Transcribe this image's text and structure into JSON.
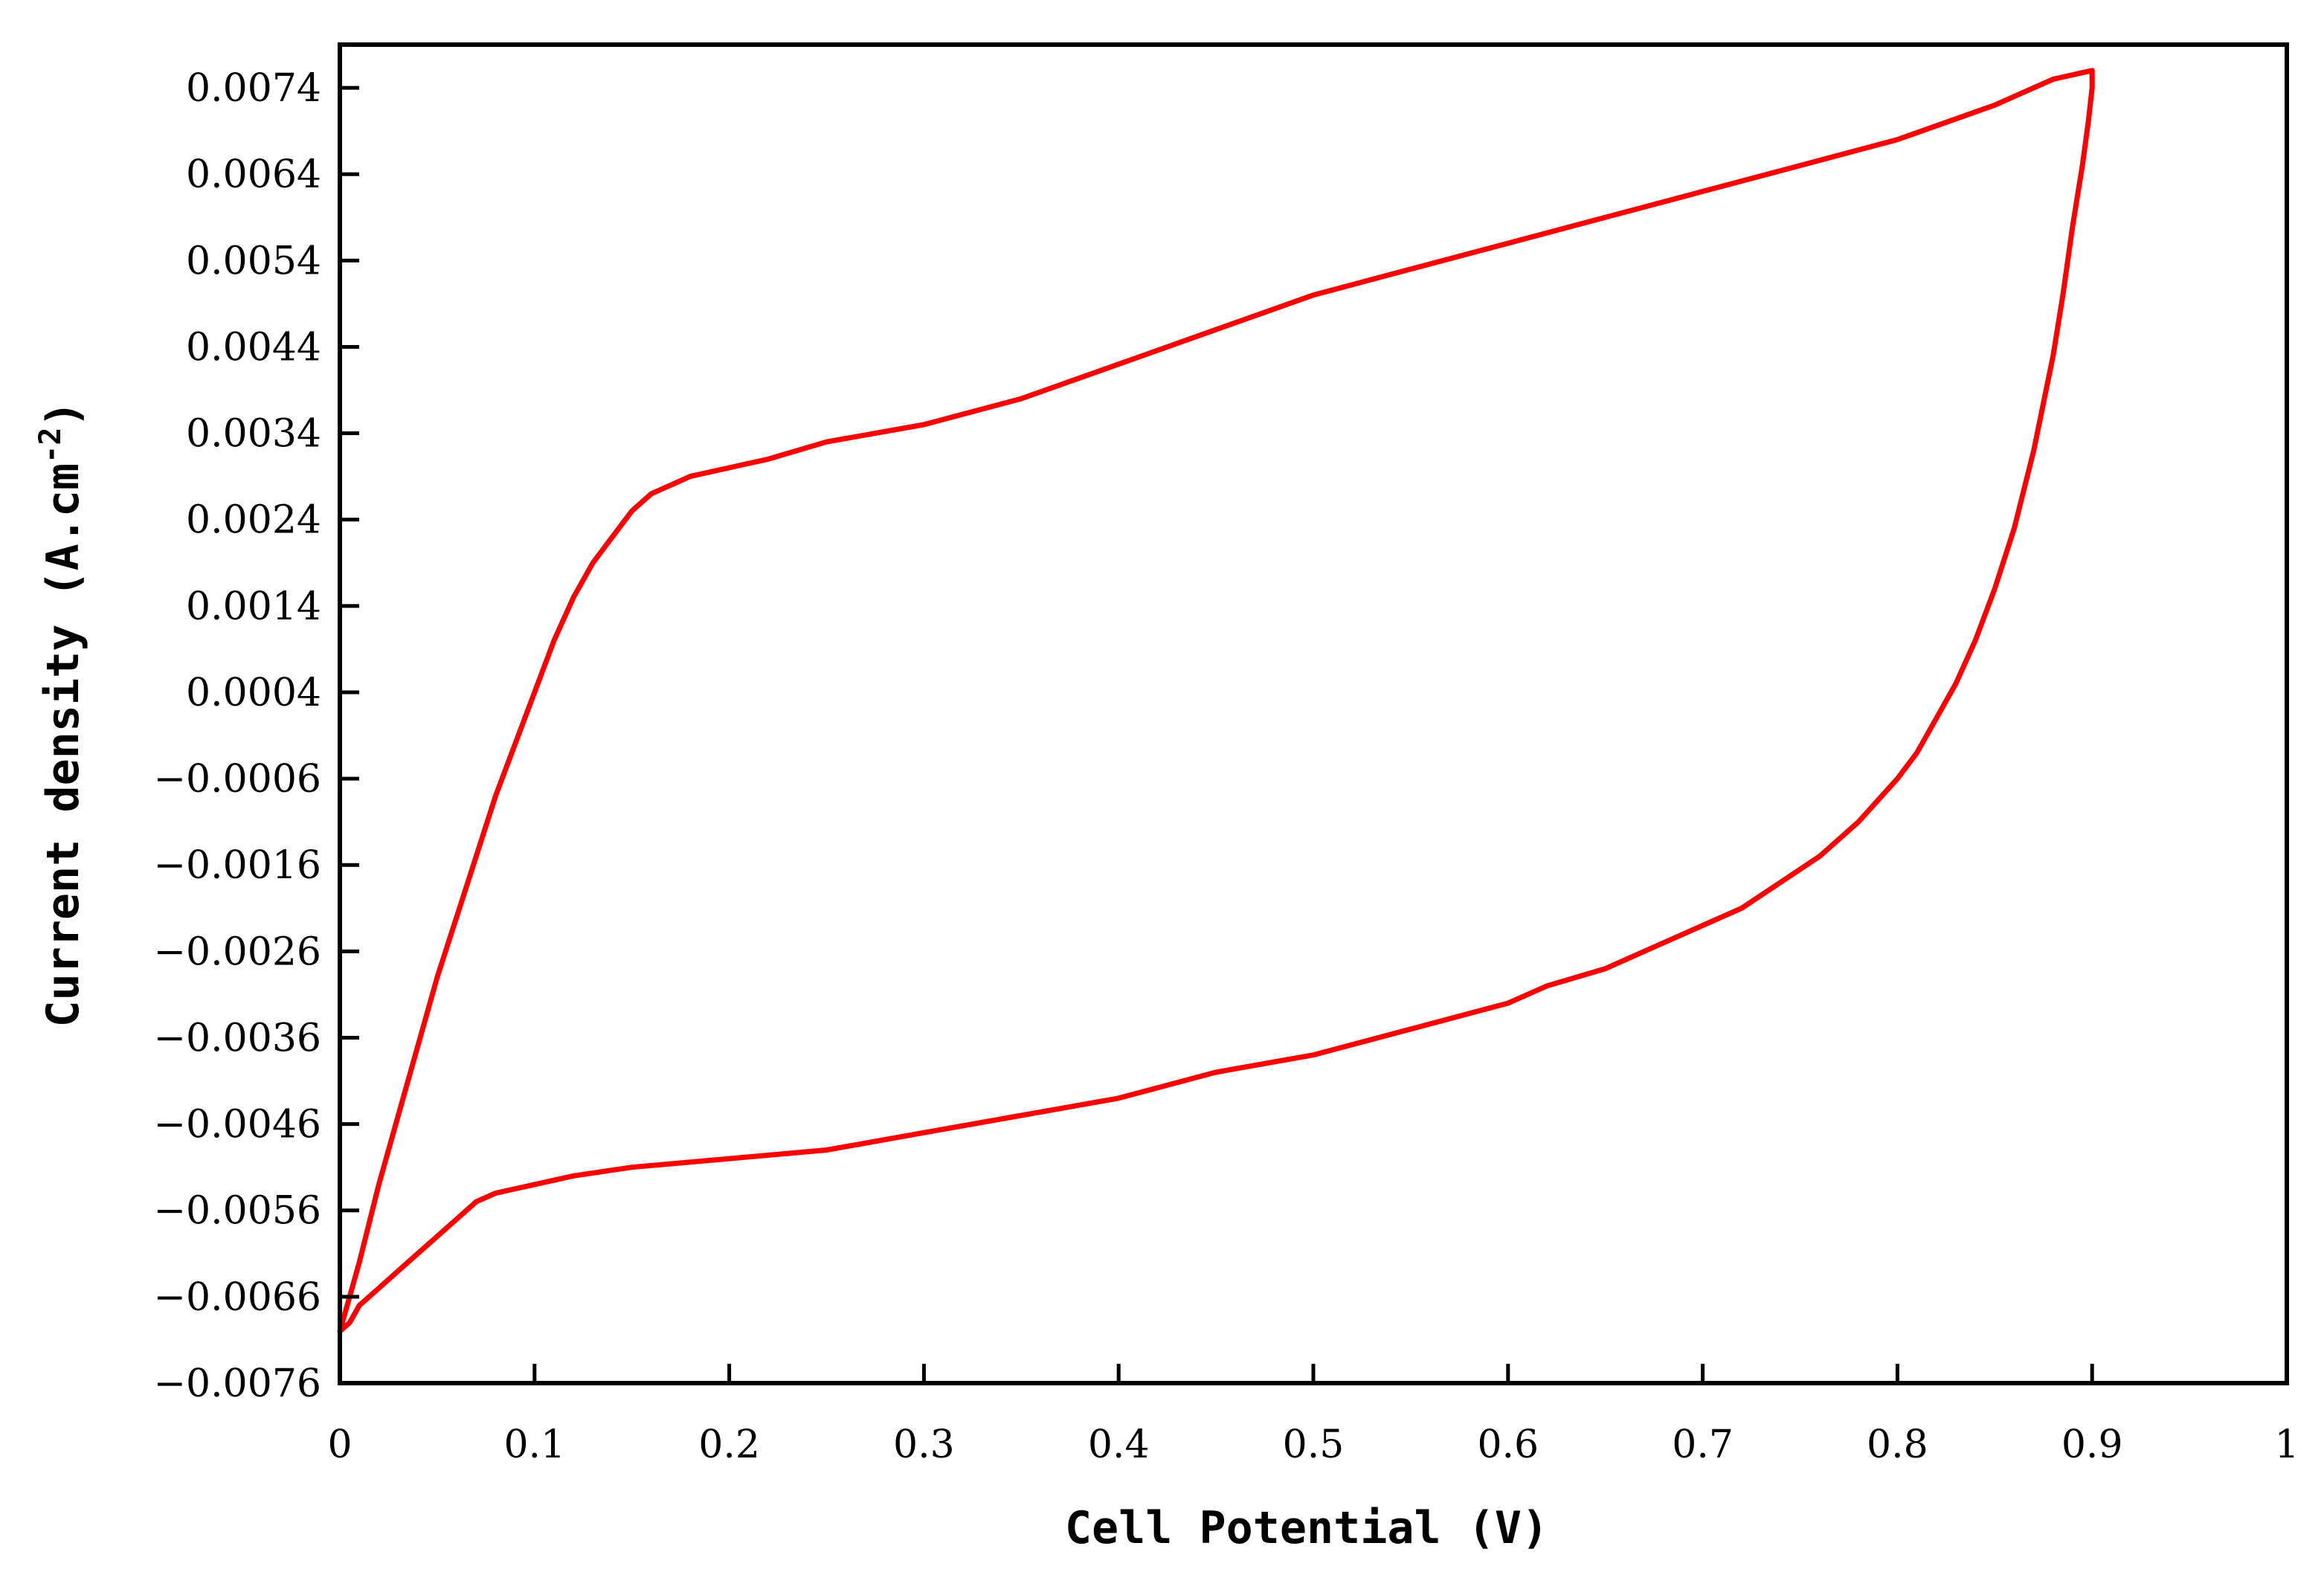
{
  "chart_data": {
    "type": "line",
    "title": "",
    "xlabel": "Cell Potential (V)",
    "ylabel_main": "Current density (A.cm",
    "ylabel_sup": "-2",
    "ylabel_close": ")",
    "xlim": [
      0,
      1
    ],
    "ylim": [
      -0.0076,
      0.0079
    ],
    "x_ticks": [
      0,
      0.1,
      0.2,
      0.3,
      0.4,
      0.5,
      0.6,
      0.7,
      0.8,
      0.9,
      1
    ],
    "x_tick_labels": [
      "0",
      "0.1",
      "0.2",
      "0.3",
      "0.4",
      "0.5",
      "0.6",
      "0.7",
      "0.8",
      "0.9",
      "1"
    ],
    "y_ticks": [
      0.0074,
      0.0064,
      0.0054,
      0.0044,
      0.0034,
      0.0024,
      0.0014,
      0.0004,
      -0.0006,
      -0.0016,
      -0.0026,
      -0.0036,
      -0.0046,
      -0.0056,
      -0.0066,
      -0.0076
    ],
    "y_tick_labels": [
      "0.0074",
      "0.0064",
      "0.0054",
      "0.0044",
      "0.0034",
      "0.0024",
      "0.0014",
      "0.0004",
      "−0.0006",
      "−0.0016",
      "−0.0026",
      "−0.0036",
      "−0.0046",
      "−0.0056",
      "−0.0066",
      "−0.0076"
    ],
    "grid": false,
    "legend": "none",
    "colors": {
      "series": "#ff0000",
      "axes": "#000000",
      "background": "#ffffff"
    },
    "series": [
      {
        "x": [
          0.0,
          0.005,
          0.01,
          0.02,
          0.03,
          0.04,
          0.05,
          0.06,
          0.07,
          0.08,
          0.09,
          0.1,
          0.11,
          0.12,
          0.13,
          0.14,
          0.15,
          0.16,
          0.17,
          0.18,
          0.2,
          0.22,
          0.25,
          0.3,
          0.35,
          0.4,
          0.45,
          0.5,
          0.55,
          0.6,
          0.65,
          0.7,
          0.75,
          0.8,
          0.85,
          0.88,
          0.9,
          0.9,
          0.898,
          0.895,
          0.89,
          0.885,
          0.88,
          0.87,
          0.86,
          0.85,
          0.84,
          0.83,
          0.82,
          0.81,
          0.8,
          0.78,
          0.76,
          0.74,
          0.72,
          0.7,
          0.68,
          0.65,
          0.62,
          0.6,
          0.55,
          0.5,
          0.45,
          0.4,
          0.35,
          0.3,
          0.25,
          0.2,
          0.15,
          0.12,
          0.1,
          0.08,
          0.07,
          0.06,
          0.05,
          0.04,
          0.03,
          0.02,
          0.01,
          0.005,
          0.0
        ],
        "y": [
          -0.007,
          -0.0066,
          -0.0062,
          -0.0053,
          -0.0045,
          -0.0037,
          -0.0029,
          -0.0022,
          -0.0015,
          -0.0008,
          -0.0002,
          0.0004,
          0.001,
          0.0015,
          0.0019,
          0.0022,
          0.0025,
          0.0027,
          0.0028,
          0.0029,
          0.003,
          0.0031,
          0.0033,
          0.0035,
          0.0038,
          0.0042,
          0.0046,
          0.005,
          0.0053,
          0.0056,
          0.0059,
          0.0062,
          0.0065,
          0.0068,
          0.0072,
          0.0075,
          0.0076,
          0.0074,
          0.007,
          0.0065,
          0.0058,
          0.005,
          0.0043,
          0.0032,
          0.0023,
          0.0016,
          0.001,
          0.0005,
          0.0001,
          -0.0003,
          -0.0006,
          -0.0011,
          -0.0015,
          -0.0018,
          -0.0021,
          -0.0023,
          -0.0025,
          -0.0028,
          -0.003,
          -0.0032,
          -0.0035,
          -0.0038,
          -0.004,
          -0.0043,
          -0.0045,
          -0.0047,
          -0.0049,
          -0.005,
          -0.0051,
          -0.0052,
          -0.0053,
          -0.0054,
          -0.0055,
          -0.0057,
          -0.0059,
          -0.0061,
          -0.0063,
          -0.0065,
          -0.0067,
          -0.0069,
          -0.007
        ]
      }
    ]
  }
}
